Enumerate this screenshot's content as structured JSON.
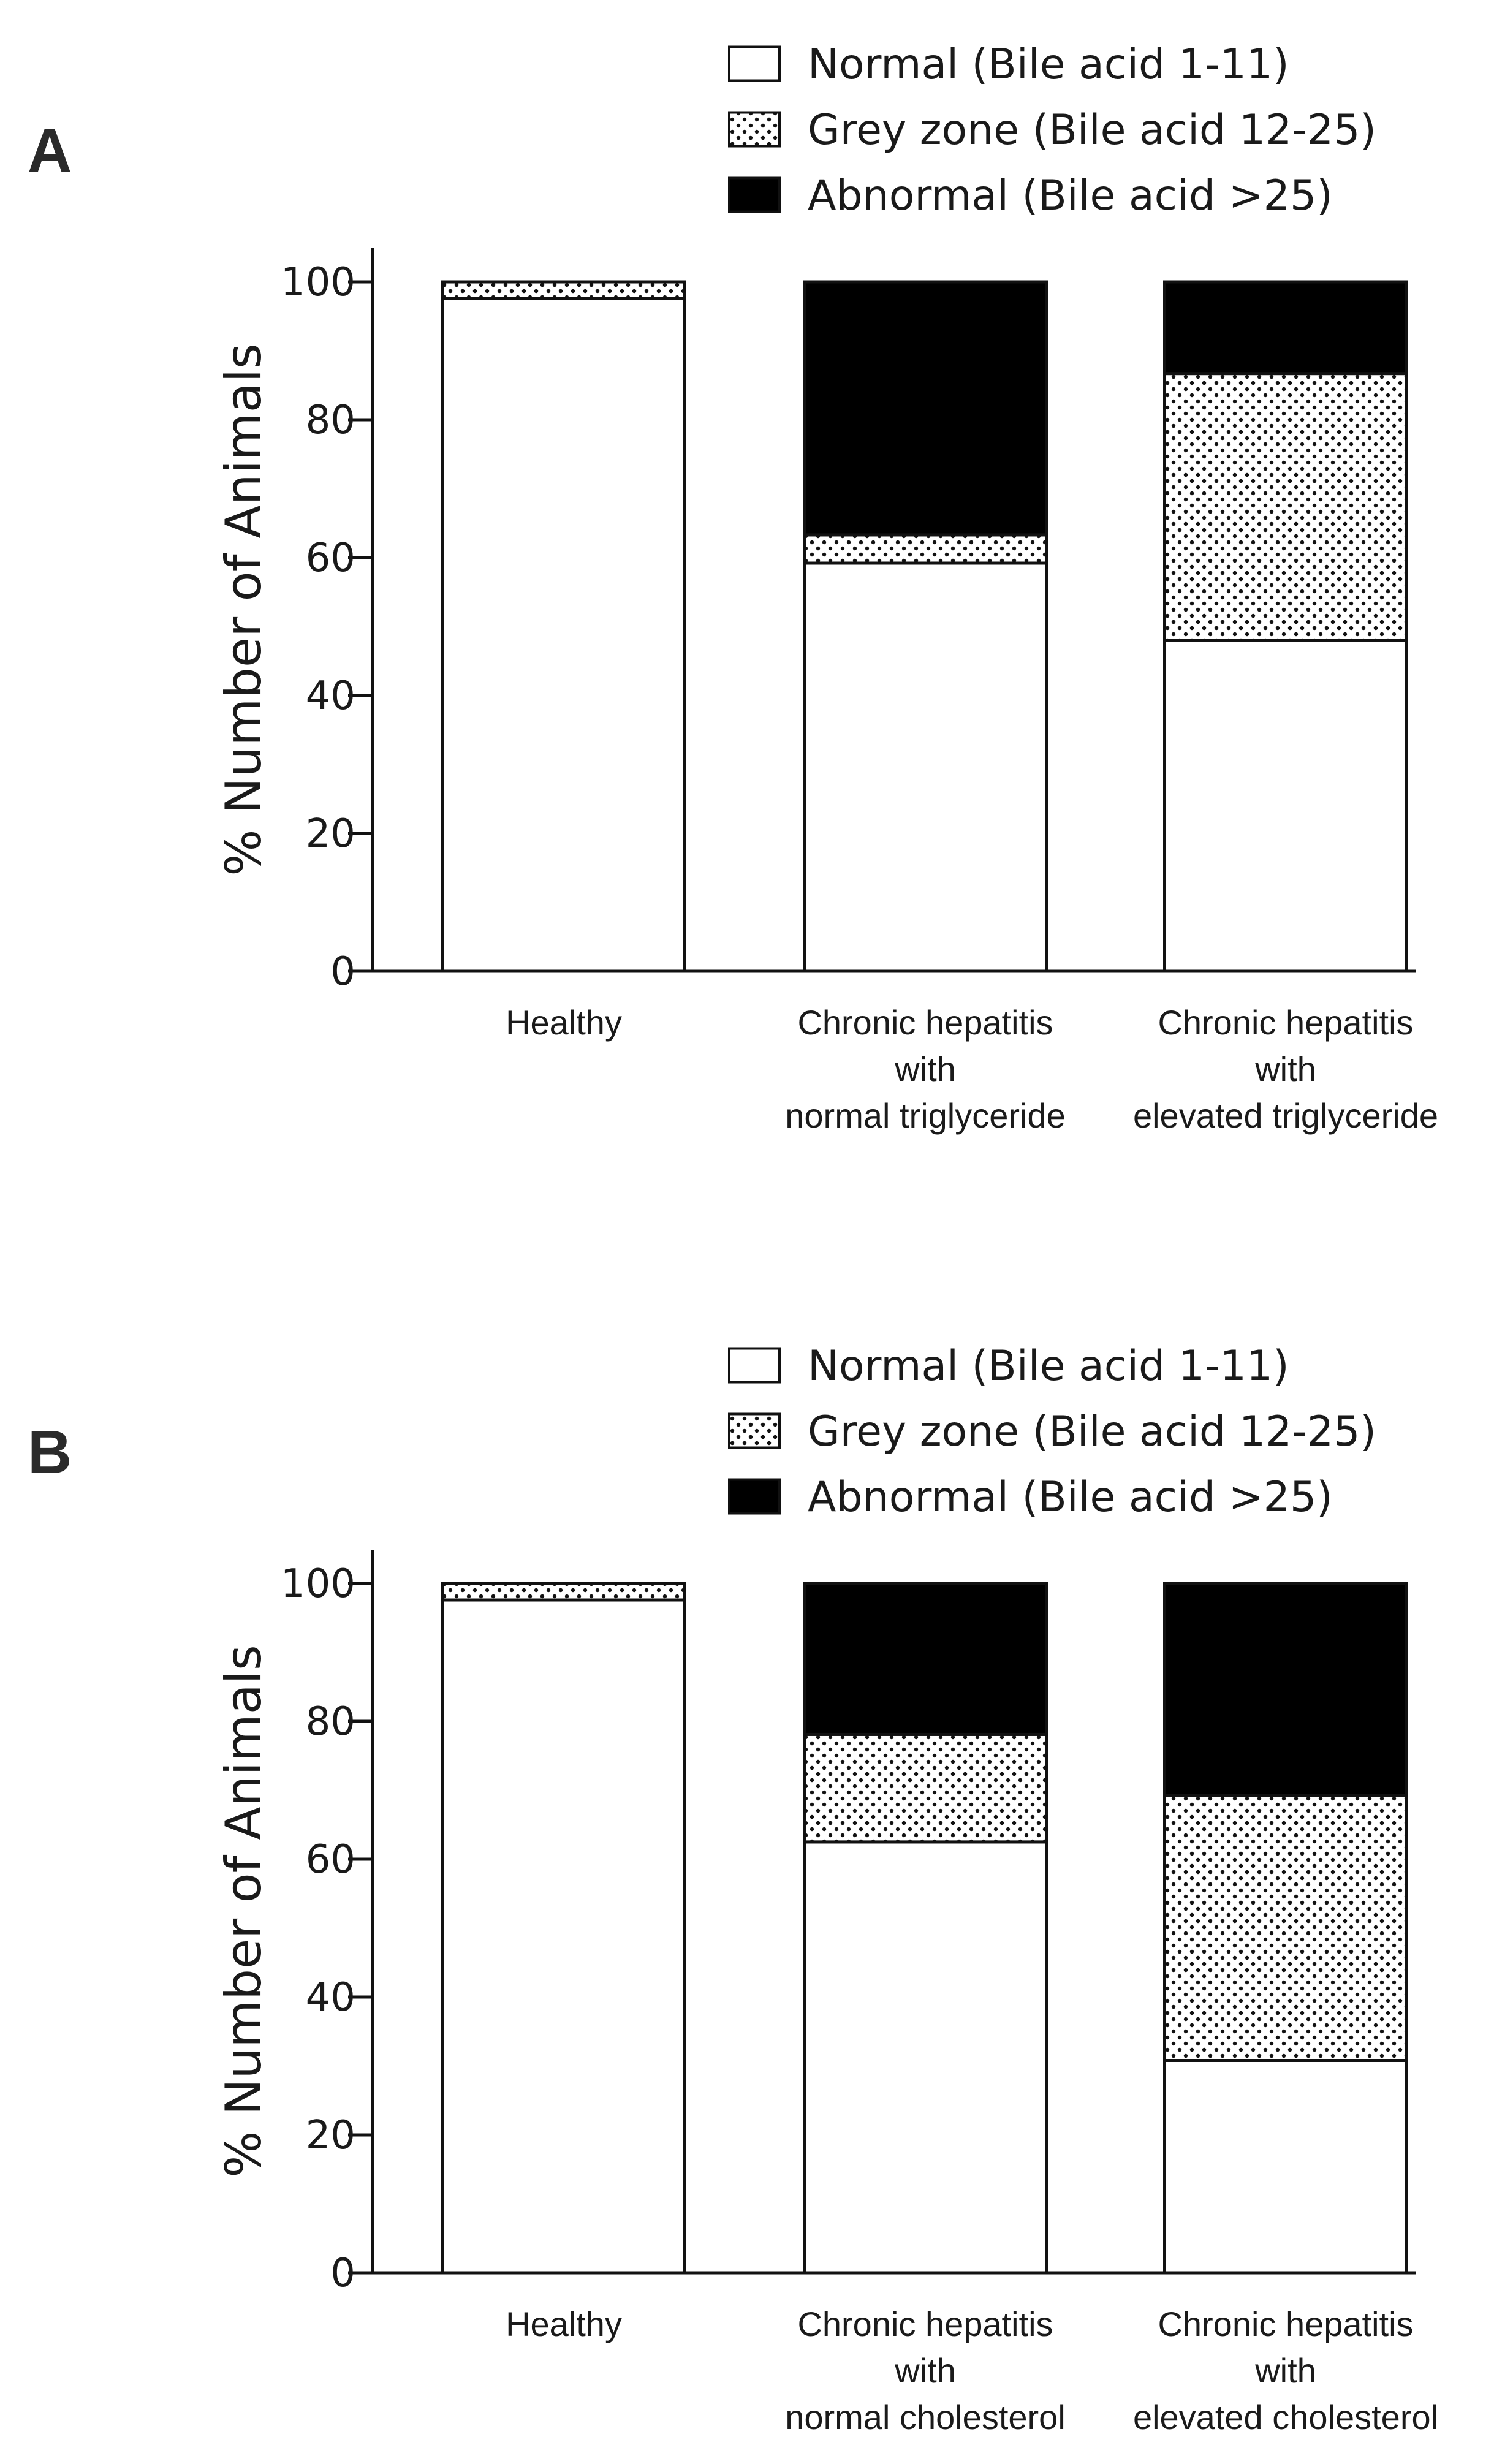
{
  "colors": {
    "normal": "#ffffff",
    "grey": "dots",
    "abnormal": "#000000",
    "stroke": "#111111"
  },
  "chart_data": [
    {
      "panel": "A",
      "type": "bar",
      "stacked": true,
      "ylabel": "% Number of Animals",
      "ylim": [
        0,
        100
      ],
      "yticks": [
        0,
        20,
        40,
        60,
        80,
        100
      ],
      "legend": [
        "Normal (Bile acid 1-11)",
        "Grey zone (Bile acid 12-25)",
        "Abnormal (Bile acid >25)"
      ],
      "categories": [
        [
          "Healthy"
        ],
        [
          "Chronic hepatitis",
          "with",
          "normal triglyceride"
        ],
        [
          "Chronic hepatitis",
          "with",
          "elevated triglyceride"
        ]
      ],
      "series": [
        {
          "name": "Normal (Bile acid 1-11)",
          "values": [
            97.6,
            59.2,
            48.0
          ]
        },
        {
          "name": "Grey zone (Bile acid 12-25)",
          "values": [
            2.4,
            4.1,
            38.7
          ]
        },
        {
          "name": "Abnormal (Bile acid >25)",
          "values": [
            0,
            36.7,
            13.3
          ]
        }
      ]
    },
    {
      "panel": "B",
      "type": "bar",
      "stacked": true,
      "ylabel": "% Number of Animals",
      "ylim": [
        0,
        100
      ],
      "yticks": [
        0,
        20,
        40,
        60,
        80,
        100
      ],
      "legend": [
        "Normal (Bile acid 1-11)",
        "Grey zone (Bile acid 12-25)",
        "Abnormal (Bile acid >25)"
      ],
      "categories": [
        [
          "Healthy"
        ],
        [
          "Chronic hepatitis",
          "with",
          "normal cholesterol"
        ],
        [
          "Chronic hepatitis",
          "with",
          "elevated cholesterol"
        ]
      ],
      "series": [
        {
          "name": "Normal (Bile acid 1-11)",
          "values": [
            97.6,
            62.5,
            30.8
          ]
        },
        {
          "name": "Grey zone (Bile acid 12-25)",
          "values": [
            2.4,
            15.6,
            38.4
          ]
        },
        {
          "name": "Abnormal (Bile acid >25)",
          "values": [
            0,
            21.9,
            30.8
          ]
        }
      ]
    }
  ]
}
